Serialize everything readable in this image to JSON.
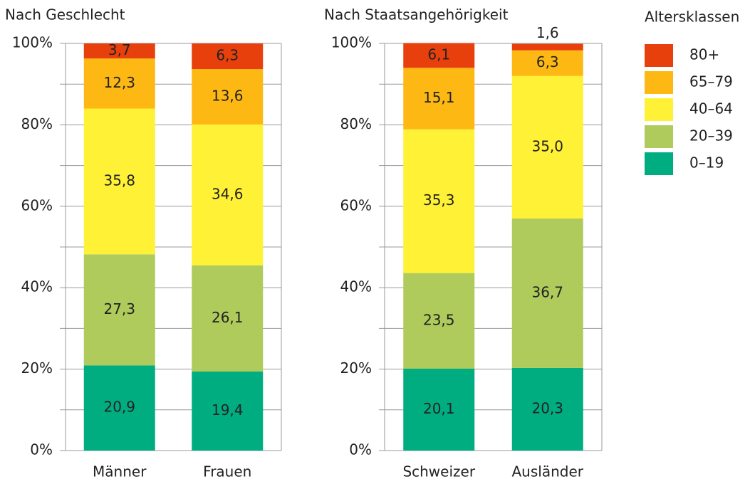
{
  "legend_title": "Altersklassen",
  "chart_data": [
    {
      "type": "stacked_bar",
      "title": "Nach Geschlecht",
      "categories": [
        "Männer",
        "Frauen"
      ],
      "series": [
        {
          "name": "0–19",
          "color": "#00ad81",
          "values": [
            20.9,
            19.4
          ],
          "value_labels": [
            "20,9",
            "19,4"
          ]
        },
        {
          "name": "20–39",
          "color": "#aecb5b",
          "values": [
            27.3,
            26.1
          ],
          "value_labels": [
            "27,3",
            "26,1"
          ]
        },
        {
          "name": "40–64",
          "color": "#fff136",
          "values": [
            35.8,
            34.6
          ],
          "value_labels": [
            "35,8",
            "34,6"
          ]
        },
        {
          "name": "65–79",
          "color": "#fdb813",
          "values": [
            12.3,
            13.6
          ],
          "value_labels": [
            "12,3",
            "13,6"
          ]
        },
        {
          "name": "80+",
          "color": "#e8400c",
          "values": [
            3.7,
            6.3
          ],
          "value_labels": [
            "3,7",
            "6,3"
          ]
        }
      ],
      "ylim": [
        0,
        100
      ],
      "yticks": [
        {
          "value": 0,
          "label": "0%"
        },
        {
          "value": 20,
          "label": "20%"
        },
        {
          "value": 40,
          "label": "40%"
        },
        {
          "value": 60,
          "label": "60%"
        },
        {
          "value": 80,
          "label": "80%"
        },
        {
          "value": 100,
          "label": "100%"
        }
      ],
      "yminorticks": [
        10,
        30,
        50,
        70,
        90
      ],
      "grid": true
    },
    {
      "type": "stacked_bar",
      "title": "Nach Staatsangehörigkeit",
      "categories": [
        "Schweizer",
        "Ausländer"
      ],
      "series": [
        {
          "values": [
            20.1,
            20.3
          ],
          "value_labels": [
            "20,1",
            "20,3"
          ]
        },
        {
          "values": [
            23.5,
            36.7
          ],
          "value_labels": [
            "23,5",
            "36,7"
          ]
        },
        {
          "values": [
            35.3,
            35.0
          ],
          "value_labels": [
            "35,3",
            "35,0"
          ]
        },
        {
          "values": [
            15.1,
            6.3
          ],
          "value_labels": [
            "15,1",
            "6,3"
          ]
        },
        {
          "values": [
            6.1,
            1.6
          ],
          "value_labels": [
            "6,1",
            "1,6"
          ]
        }
      ],
      "ylim": [
        0,
        100
      ],
      "yticks": [
        {
          "value": 0,
          "label": "0%"
        },
        {
          "value": 20,
          "label": "20%"
        },
        {
          "value": 40,
          "label": "40%"
        },
        {
          "value": 60,
          "label": "60%"
        },
        {
          "value": 80,
          "label": "80%"
        },
        {
          "value": 100,
          "label": "100%"
        }
      ],
      "yminorticks": [
        10,
        30,
        50,
        70,
        90
      ],
      "grid": true
    }
  ]
}
